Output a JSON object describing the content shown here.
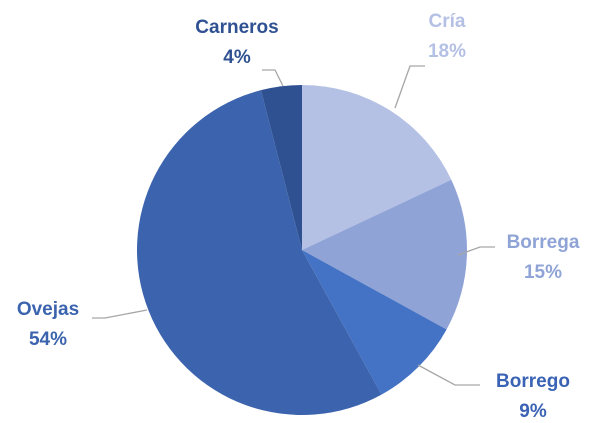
{
  "chart_data": {
    "type": "pie",
    "categories": [
      "Cría",
      "Borrega",
      "Borrego",
      "Ovejas",
      "Carneros"
    ],
    "values": [
      18,
      15,
      9,
      54,
      4
    ],
    "value_labels": [
      "18%",
      "15%",
      "9%",
      "54%",
      "4%"
    ],
    "colors": [
      "#b4c1e4",
      "#8fa3d6",
      "#4472c4",
      "#3c64ae",
      "#2f5192"
    ]
  }
}
